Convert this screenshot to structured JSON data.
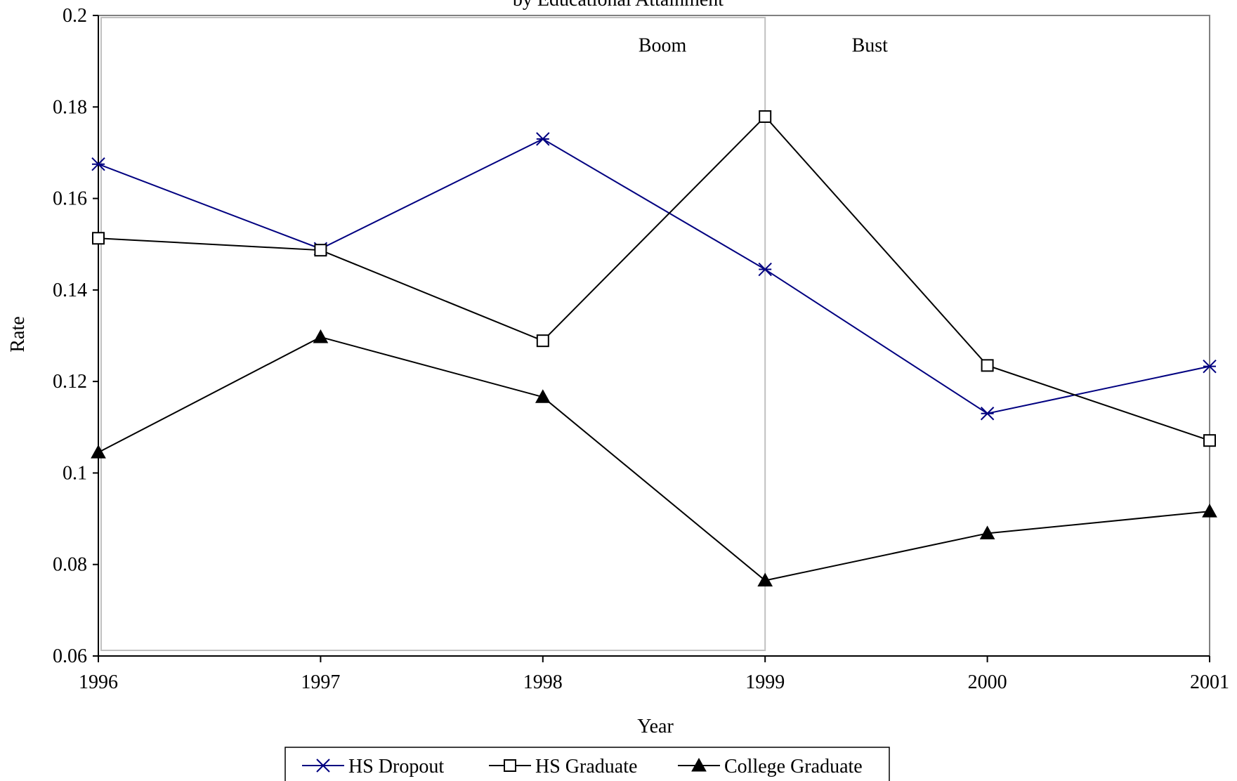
{
  "chart_data": {
    "type": "line",
    "title": "by Educational Attainment",
    "xlabel": "Year",
    "ylabel": "Rate",
    "x": [
      1996,
      1997,
      1998,
      1999,
      2000,
      2001
    ],
    "x_tick_labels": [
      "1996",
      "1997",
      "1998",
      "1999",
      "2000",
      "2001"
    ],
    "xlim": [
      1996,
      2001
    ],
    "ylim": [
      0.06,
      0.2
    ],
    "y_ticks": [
      0.06,
      0.08,
      0.1,
      0.12,
      0.14,
      0.16,
      0.18,
      0.2
    ],
    "y_tick_labels": [
      "0.06",
      "0.08",
      "0.1",
      "0.12",
      "0.14",
      "0.16",
      "0.18",
      "0.2"
    ],
    "grid": false,
    "legend_position": "bottom",
    "series": [
      {
        "name": "HS Dropout",
        "marker": "star",
        "color": "#000080",
        "values": [
          0.1675,
          0.149,
          0.173,
          0.1445,
          0.113,
          0.1233
        ]
      },
      {
        "name": "HS Graduate",
        "marker": "square",
        "color": "#000000",
        "values": [
          0.1513,
          0.1487,
          0.1289,
          0.1779,
          0.1235,
          0.1071
        ]
      },
      {
        "name": "College Graduate",
        "marker": "triangle",
        "color": "#000000",
        "values": [
          0.1045,
          0.1297,
          0.1166,
          0.0765,
          0.0868,
          0.0916
        ]
      }
    ],
    "annotations": [
      {
        "text": "Boom",
        "x": 1998.43,
        "y": 0.1935
      },
      {
        "text": "Bust",
        "x": 1999.39,
        "y": 0.1935
      }
    ],
    "boom_region": {
      "x0": 1996,
      "x1": 1999,
      "color": "#c0c0c0"
    }
  }
}
